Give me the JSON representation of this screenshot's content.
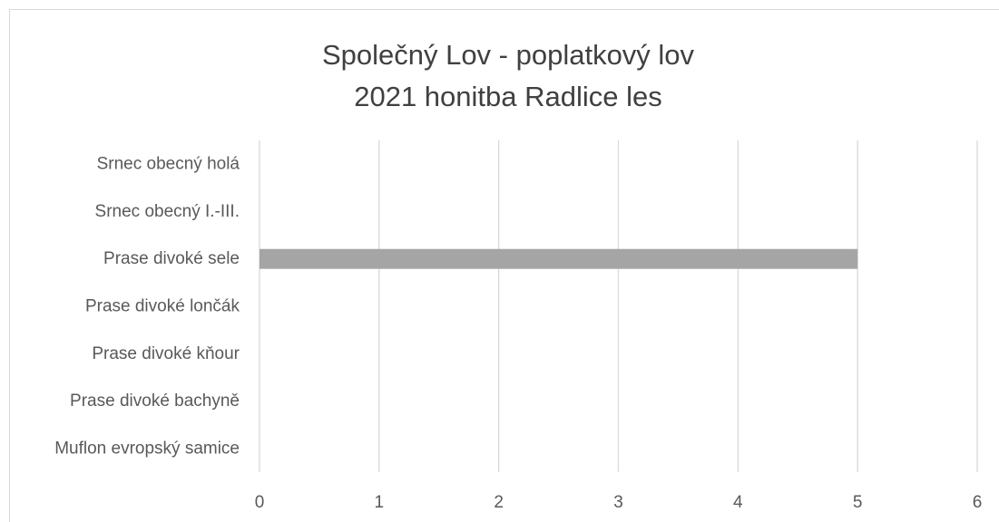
{
  "chart_data": {
    "type": "bar",
    "orientation": "horizontal",
    "title": "Společný Lov - poplatkový lov",
    "subtitle": "2021 honitba Radlice les",
    "categories": [
      "Srnec obecný holá",
      "Srnec obecný I.-III.",
      "Prase divoké sele",
      "Prase divoké lončák",
      "Prase divoké kňour",
      "Prase divoké bachyně",
      "Muflon evropský samice"
    ],
    "values": [
      0,
      0,
      5,
      0,
      0,
      0,
      0
    ],
    "xlim": [
      0,
      6
    ],
    "xticks": [
      0,
      1,
      2,
      3,
      4,
      5,
      6
    ],
    "grid": "vertical",
    "legend": "none",
    "bar_color": "#a5a5a5",
    "grid_color": "#d9d9d9",
    "text_color": "#595959"
  }
}
